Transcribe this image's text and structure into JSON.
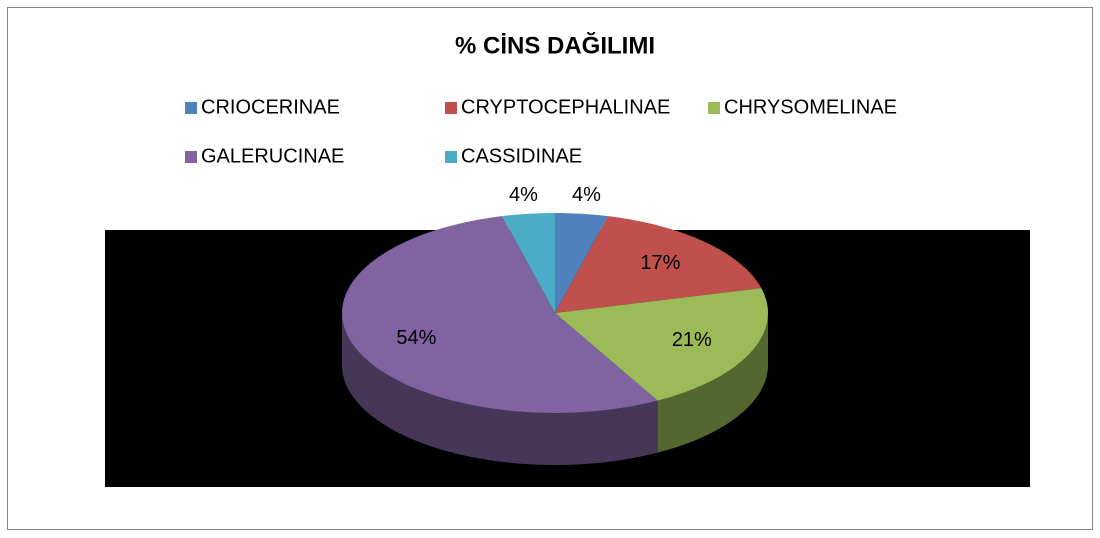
{
  "chart_data": {
    "type": "pie",
    "title": "% CİNS DAĞILIMI",
    "categories": [
      "CRIOCERINAE",
      "CRYPTOCEPHALINAE",
      "CHRYSOMELINAE",
      "GALERUCINAE",
      "CASSIDINAE"
    ],
    "values": [
      4,
      17,
      21,
      54,
      4
    ],
    "value_labels": [
      "4%",
      "17%",
      "21%",
      "54%",
      "4%"
    ],
    "colors": [
      "#4f81bd",
      "#c0504d",
      "#9bbb59",
      "#8064a2",
      "#4bacc6"
    ],
    "legend": "top"
  }
}
